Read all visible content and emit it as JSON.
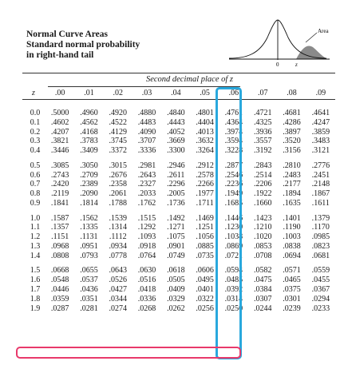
{
  "title": {
    "line1": "Normal Curve Areas",
    "line2": "Standard normal probability",
    "line3": "in right-hand tail"
  },
  "figure": {
    "area_label": "Area",
    "zero_label": "0",
    "z_label": "z"
  },
  "table": {
    "subheading": "Second decimal place of z",
    "z_header": "z",
    "columns": [
      ".00",
      ".01",
      ".02",
      ".03",
      ".04",
      ".05",
      ".06",
      ".07",
      ".08",
      ".09"
    ],
    "rows": [
      {
        "z": "0.0",
        "v": [
          ".5000",
          ".4960",
          ".4920",
          ".4880",
          ".4840",
          ".4801",
          ".4761",
          ".4721",
          ".4681",
          ".4641"
        ]
      },
      {
        "z": "0.1",
        "v": [
          ".4602",
          ".4562",
          ".4522",
          ".4483",
          ".4443",
          ".4404",
          ".4364",
          ".4325",
          ".4286",
          ".4247"
        ]
      },
      {
        "z": "0.2",
        "v": [
          ".4207",
          ".4168",
          ".4129",
          ".4090",
          ".4052",
          ".4013",
          ".3974",
          ".3936",
          ".3897",
          ".3859"
        ]
      },
      {
        "z": "0.3",
        "v": [
          ".3821",
          ".3783",
          ".3745",
          ".3707",
          ".3669",
          ".3632",
          ".3594",
          ".3557",
          ".3520",
          ".3483"
        ]
      },
      {
        "z": "0.4",
        "v": [
          ".3446",
          ".3409",
          ".3372",
          ".3336",
          ".3300",
          ".3264",
          ".3228",
          ".3192",
          ".3156",
          ".3121"
        ]
      },
      {
        "z": "0.5",
        "v": [
          ".3085",
          ".3050",
          ".3015",
          ".2981",
          ".2946",
          ".2912",
          ".2877",
          ".2843",
          ".2810",
          ".2776"
        ]
      },
      {
        "z": "0.6",
        "v": [
          ".2743",
          ".2709",
          ".2676",
          ".2643",
          ".2611",
          ".2578",
          ".2546",
          ".2514",
          ".2483",
          ".2451"
        ]
      },
      {
        "z": "0.7",
        "v": [
          ".2420",
          ".2389",
          ".2358",
          ".2327",
          ".2296",
          ".2266",
          ".2236",
          ".2206",
          ".2177",
          ".2148"
        ]
      },
      {
        "z": "0.8",
        "v": [
          ".2119",
          ".2090",
          ".2061",
          ".2033",
          ".2005",
          ".1977",
          ".1949",
          ".1922",
          ".1894",
          ".1867"
        ]
      },
      {
        "z": "0.9",
        "v": [
          ".1841",
          ".1814",
          ".1788",
          ".1762",
          ".1736",
          ".1711",
          ".1685",
          ".1660",
          ".1635",
          ".1611"
        ]
      },
      {
        "z": "1.0",
        "v": [
          ".1587",
          ".1562",
          ".1539",
          ".1515",
          ".1492",
          ".1469",
          ".1446",
          ".1423",
          ".1401",
          ".1379"
        ]
      },
      {
        "z": "1.1",
        "v": [
          ".1357",
          ".1335",
          ".1314",
          ".1292",
          ".1271",
          ".1251",
          ".1230",
          ".1210",
          ".1190",
          ".1170"
        ]
      },
      {
        "z": "1.2",
        "v": [
          ".1151",
          ".1131",
          ".1112",
          ".1093",
          ".1075",
          ".1056",
          ".1038",
          ".1020",
          ".1003",
          ".0985"
        ]
      },
      {
        "z": "1.3",
        "v": [
          ".0968",
          ".0951",
          ".0934",
          ".0918",
          ".0901",
          ".0885",
          ".0869",
          ".0853",
          ".0838",
          ".0823"
        ]
      },
      {
        "z": "1.4",
        "v": [
          ".0808",
          ".0793",
          ".0778",
          ".0764",
          ".0749",
          ".0735",
          ".0721",
          ".0708",
          ".0694",
          ".0681"
        ]
      },
      {
        "z": "1.5",
        "v": [
          ".0668",
          ".0655",
          ".0643",
          ".0630",
          ".0618",
          ".0606",
          ".0594",
          ".0582",
          ".0571",
          ".0559"
        ]
      },
      {
        "z": "1.6",
        "v": [
          ".0548",
          ".0537",
          ".0526",
          ".0516",
          ".0505",
          ".0495",
          ".0485",
          ".0475",
          ".0465",
          ".0455"
        ]
      },
      {
        "z": "1.7",
        "v": [
          ".0446",
          ".0436",
          ".0427",
          ".0418",
          ".0409",
          ".0401",
          ".0392",
          ".0384",
          ".0375",
          ".0367"
        ]
      },
      {
        "z": "1.8",
        "v": [
          ".0359",
          ".0351",
          ".0344",
          ".0336",
          ".0329",
          ".0322",
          ".0314",
          ".0307",
          ".0301",
          ".0294"
        ]
      },
      {
        "z": "1.9",
        "v": [
          ".0287",
          ".0281",
          ".0274",
          ".0268",
          ".0262",
          ".0256",
          ".0250",
          ".0244",
          ".0239",
          ".0233"
        ]
      }
    ]
  },
  "colors": {
    "column_highlight": "#29a8dd",
    "row_highlight": "#e8396b",
    "tail_fill": "#8a8a8a"
  }
}
